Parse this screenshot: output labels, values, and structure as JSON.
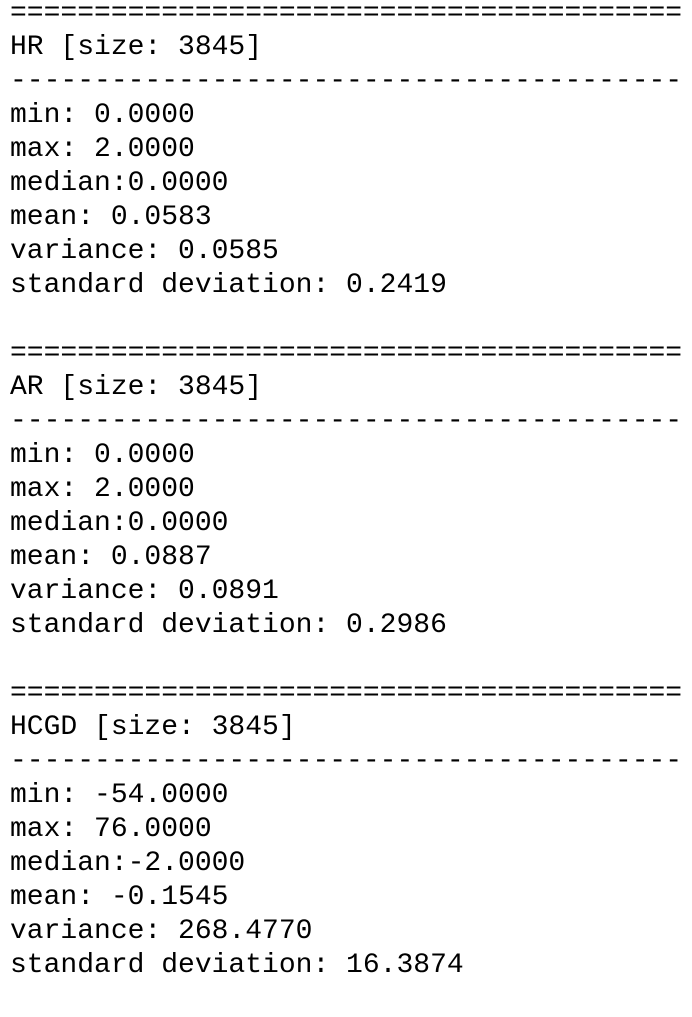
{
  "blocks": [
    {
      "separator": "========================================",
      "header": "HR [size: 3845]",
      "divider": "----------------------------------------",
      "lines": [
        "min: 0.0000",
        "max: 2.0000",
        "median:0.0000",
        "mean: 0.0583",
        "variance: 0.0585",
        "standard deviation: 0.2419"
      ]
    },
    {
      "separator": "========================================",
      "header": "AR [size: 3845]",
      "divider": "----------------------------------------",
      "lines": [
        "min: 0.0000",
        "max: 2.0000",
        "median:0.0000",
        "mean: 0.0887",
        "variance: 0.0891",
        "standard deviation: 0.2986"
      ]
    },
    {
      "separator": "========================================",
      "header": "HCGD [size: 3845]",
      "divider": "----------------------------------------",
      "lines": [
        "min: -54.0000",
        "max: 76.0000",
        "median:-2.0000",
        "mean: -0.1545",
        "variance: 268.4770",
        "standard deviation: 16.3874"
      ]
    }
  ]
}
